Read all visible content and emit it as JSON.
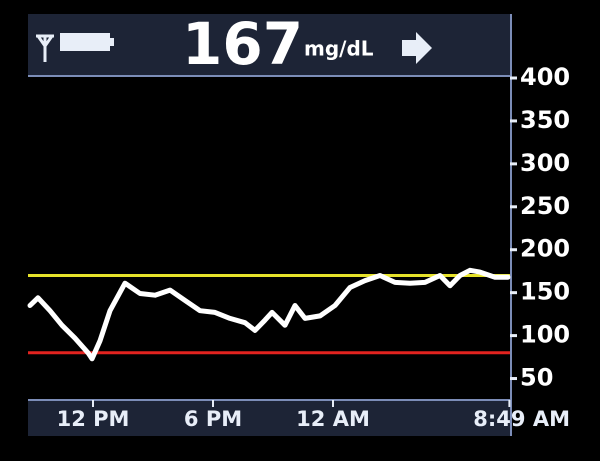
{
  "chart_data": {
    "type": "line",
    "current_value": "167",
    "units": "mg/dL",
    "x": [
      -3.15,
      -2.75,
      -2.15,
      -1.55,
      -0.9,
      -0.25,
      -0.05,
      0.35,
      0.85,
      1.6,
      2.35,
      3.1,
      3.85,
      4.6,
      5.35,
      6.1,
      6.85,
      7.6,
      8.1,
      8.6,
      8.95,
      9.6,
      10.1,
      10.6,
      11.35,
      12.1,
      12.85,
      13.6,
      14.35,
      15.1,
      15.85,
      16.6,
      17.35,
      17.85,
      18.35,
      18.85,
      19.35,
      20.1,
      20.75
    ],
    "series": [
      {
        "color": "#ffffff",
        "values": [
          135,
          144,
          129,
          112,
          97,
          80,
          73,
          94,
          129,
          161,
          149,
          147,
          153,
          141,
          129,
          127,
          120,
          115,
          106,
          118,
          127,
          112,
          135,
          120,
          123,
          135,
          156,
          164,
          170,
          162,
          161,
          162,
          170,
          158,
          170,
          176,
          174,
          168,
          168
        ]
      }
    ],
    "thresholds": [
      {
        "value": 170,
        "color": "#e6e22a"
      },
      {
        "value": 80,
        "color": "#e3231f"
      }
    ],
    "xlim": [
      -3.25,
      20.85
    ],
    "xticks": [
      {
        "value": 0,
        "label": "12 PM"
      },
      {
        "value": 6,
        "label": "6 PM"
      },
      {
        "value": 12,
        "label": "12 AM"
      },
      {
        "value": 20.82,
        "label": "8:49 AM"
      }
    ],
    "ylim": [
      25,
      400
    ],
    "yticks": [
      50,
      100,
      150,
      200,
      250,
      300,
      350,
      400
    ],
    "grid": false
  }
}
